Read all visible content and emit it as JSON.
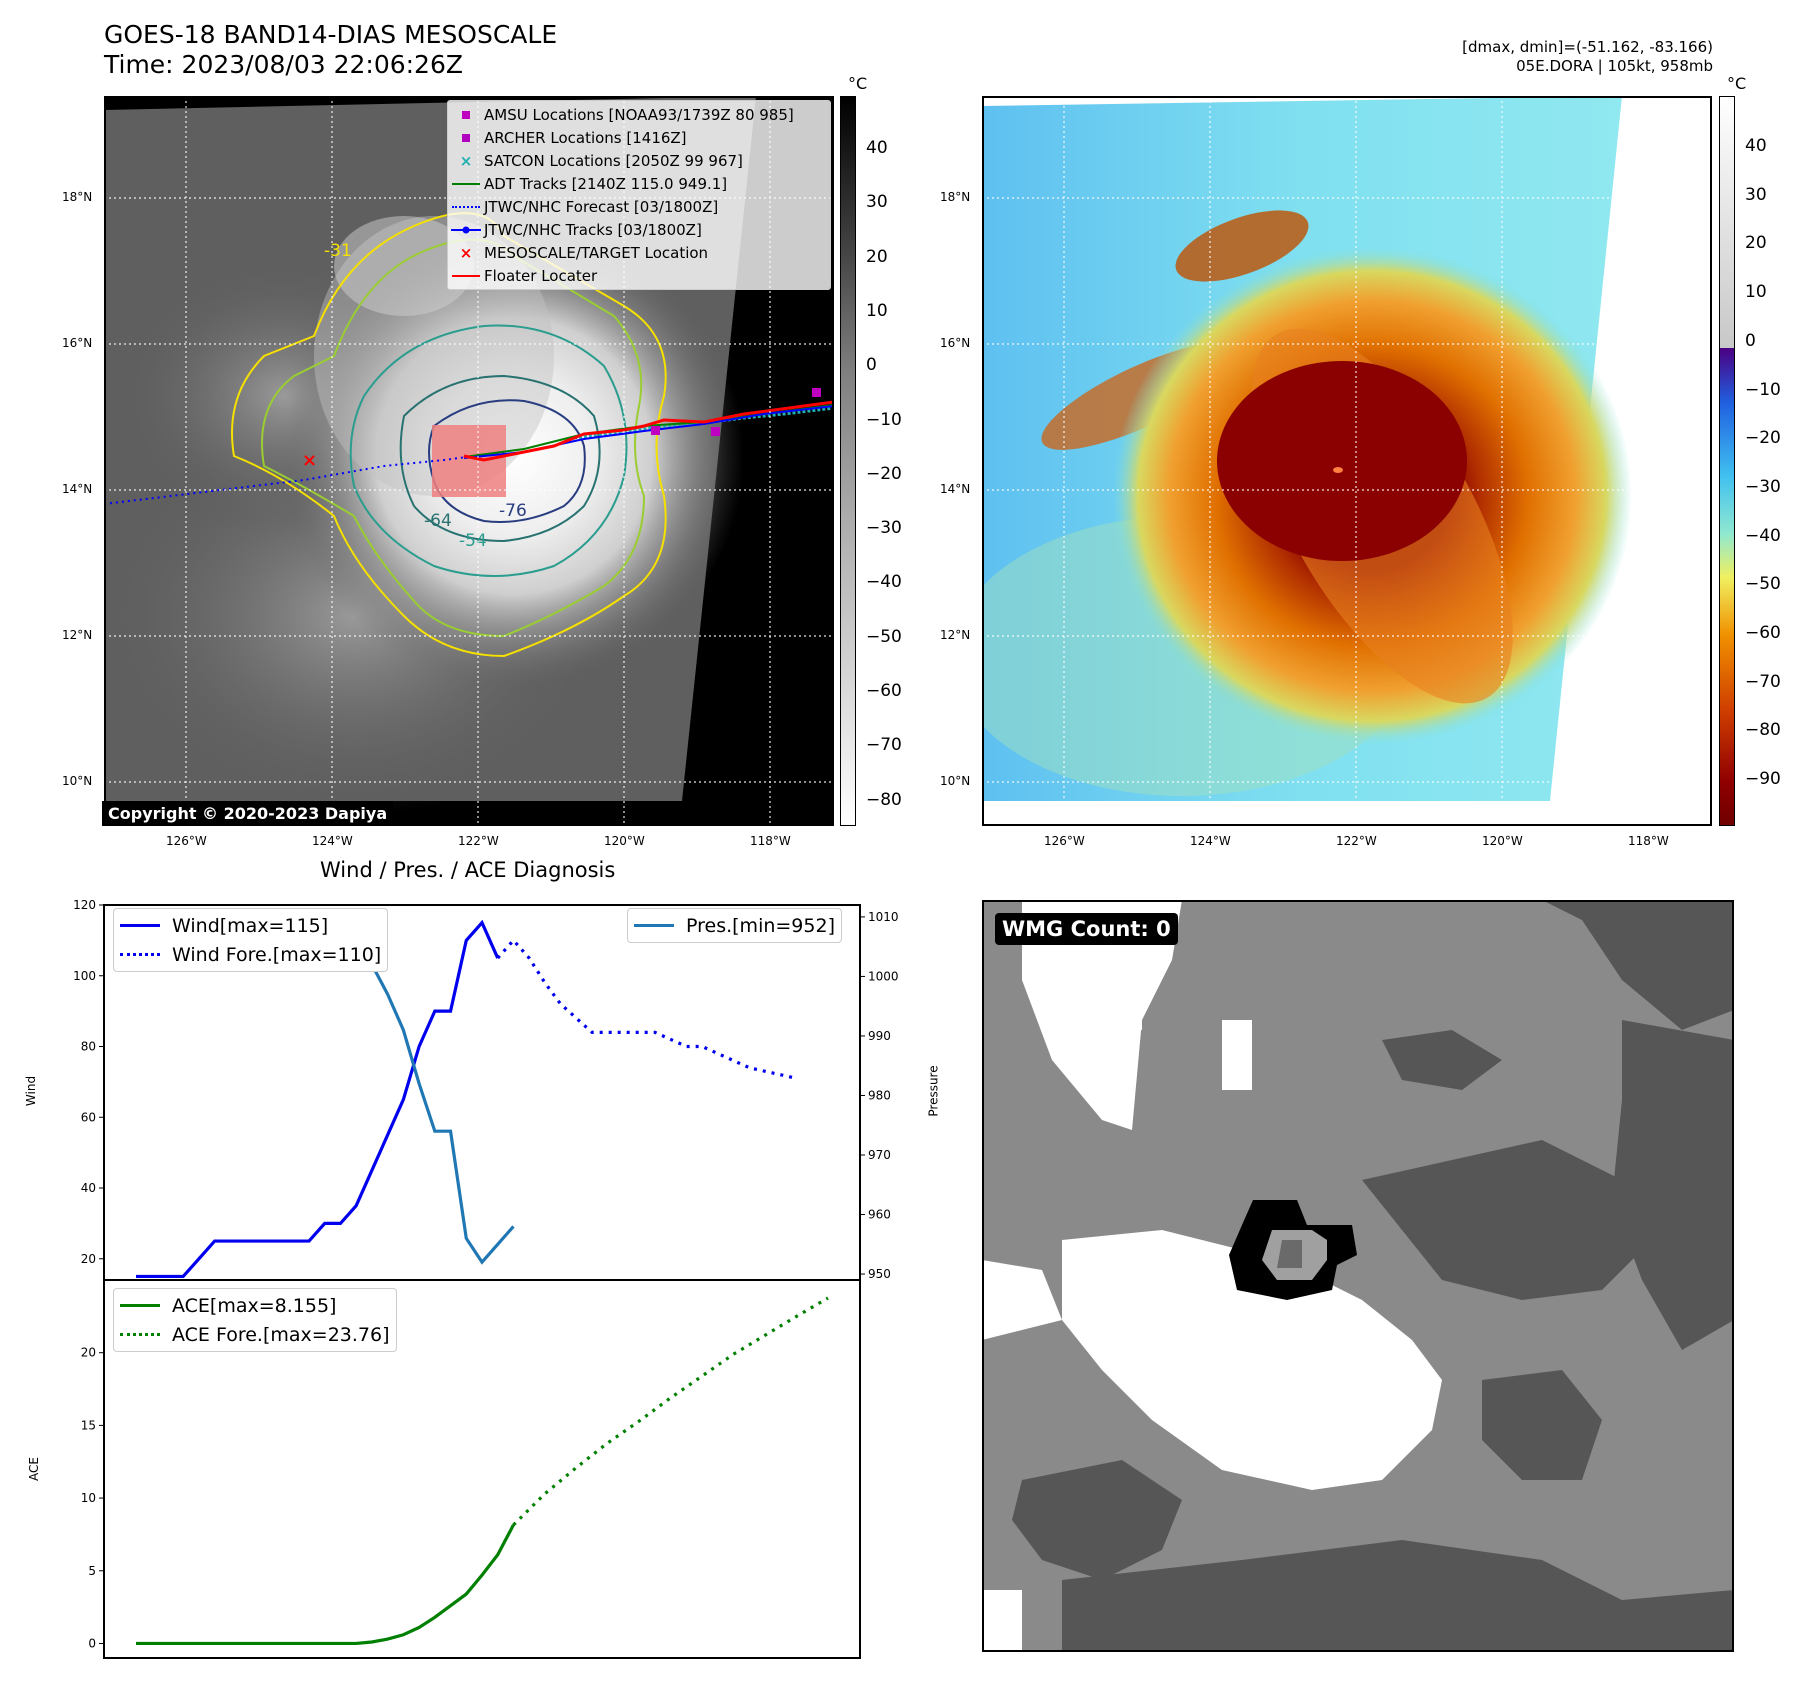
{
  "header": {
    "title_line1": "GOES-18 BAND14-DIAS MESOSCALE",
    "title_line2": "Time: 2023/08/03 22:06:26Z",
    "right_line1": "[dmax, dmin]=(-51.162, -83.166)",
    "right_line2": "05E.DORA | 105kt, 958mb"
  },
  "colors": {
    "amsu": "#c000c0",
    "archer": "#b000c0",
    "satcon": "#20b0b0",
    "adt": "#008000",
    "jtwc_forecast": "#0000ff",
    "jtwc_track": "#0000ff",
    "target": "#ff0000",
    "floater": "#ff0000",
    "wind": "#0000ee",
    "pres": "#1f77b4",
    "ace": "#008000"
  },
  "map_axes": {
    "lon_ticks": [
      "126°W",
      "124°W",
      "122°W",
      "120°W",
      "118°W"
    ],
    "lat_ticks": [
      "18°N",
      "16°N",
      "14°N",
      "12°N",
      "10°N"
    ]
  },
  "ir_panel": {
    "legend": [
      "AMSU Locations [NOAA93/1739Z 80 985]",
      "ARCHER Locations [1416Z]",
      "SATCON Locations [2050Z 99 967]",
      "ADT Tracks [2140Z 115.0 949.1]",
      "JTWC/NHC Forecast [03/1800Z]",
      "JTWC/NHC Tracks [03/1800Z]",
      "MESOSCALE/TARGET Location",
      "Floater Locater"
    ],
    "contour_labels": [
      "-76",
      "-64",
      "-54",
      "-31"
    ],
    "copyright": "Copyright © 2020-2023 Dapiya",
    "colorbar_unit": "°C",
    "colorbar_ticks": [
      "40",
      "30",
      "20",
      "10",
      "0",
      "−10",
      "−20",
      "−30",
      "−40",
      "−50",
      "−60",
      "−70",
      "−80"
    ]
  },
  "color_panel": {
    "colorbar_unit": "°C",
    "colorbar_ticks": [
      "40",
      "30",
      "20",
      "10",
      "0",
      "−10",
      "−20",
      "−30",
      "−40",
      "−50",
      "−60",
      "−70",
      "−80",
      "−90"
    ]
  },
  "wmg_panel": {
    "label": "WMG Count: 0"
  },
  "chart_data": [
    {
      "type": "line",
      "title": "Wind / Pres. / ACE Diagnosis",
      "ylabel": "Wind",
      "ylabel2": "Pressure",
      "ylim": [
        14,
        120
      ],
      "ylim2": [
        949,
        1012
      ],
      "yticks": [
        20,
        40,
        60,
        80,
        100,
        120
      ],
      "yticks2": [
        950,
        960,
        970,
        980,
        990,
        1000,
        1010
      ],
      "series": [
        {
          "name": "Wind[max=115]",
          "x": [
            0,
            1,
            2,
            3,
            4,
            5,
            6,
            7,
            8,
            9,
            10,
            11,
            12,
            13,
            14,
            15,
            16,
            17,
            18,
            19,
            20,
            21,
            22,
            23
          ],
          "values": [
            15,
            15,
            15,
            15,
            20,
            25,
            25,
            25,
            25,
            25,
            25,
            25,
            30,
            30,
            35,
            45,
            55,
            65,
            80,
            90,
            90,
            110,
            115,
            105
          ]
        },
        {
          "name": "Wind Fore.[max=110]",
          "x": [
            23,
            24,
            25,
            26,
            27,
            28,
            29,
            30,
            31,
            32,
            33,
            34,
            35,
            36,
            37,
            38,
            39,
            40,
            41,
            42
          ],
          "values": [
            105,
            110,
            105,
            98,
            92,
            88,
            84,
            84,
            84,
            84,
            84,
            82,
            80,
            80,
            78,
            76,
            74,
            73,
            72,
            71
          ]
        },
        {
          "name": "Pres.[min=952]",
          "axis": "right",
          "x": [
            0,
            1,
            2,
            3,
            4,
            5,
            6,
            7,
            8,
            9,
            10,
            11,
            12,
            13,
            14,
            15,
            16,
            17,
            18,
            19,
            20,
            21,
            22,
            23,
            24
          ],
          "values": [
            1010,
            1010,
            1010,
            1010,
            1010,
            1009,
            1008,
            1008,
            1008,
            1008,
            1008,
            1008,
            1008,
            1008,
            1006,
            1002,
            997,
            991,
            982,
            974,
            974,
            956,
            952,
            955,
            958
          ]
        }
      ]
    },
    {
      "type": "line",
      "ylabel": "ACE",
      "ylim": [
        -1,
        25
      ],
      "yticks": [
        0,
        5,
        10,
        15,
        20
      ],
      "series": [
        {
          "name": "ACE[max=8.155]",
          "x": [
            0,
            1,
            2,
            3,
            4,
            5,
            6,
            7,
            8,
            9,
            10,
            11,
            12,
            13,
            14,
            15,
            16,
            17,
            18,
            19,
            20,
            21,
            22,
            23,
            24
          ],
          "values": [
            0,
            0,
            0,
            0,
            0,
            0,
            0,
            0,
            0,
            0,
            0,
            0,
            0,
            0,
            0,
            0.1,
            0.3,
            0.6,
            1.1,
            1.8,
            2.6,
            3.4,
            4.7,
            6.1,
            8.155
          ]
        },
        {
          "name": "ACE Fore.[max=23.76]",
          "x": [
            24,
            26,
            28,
            30,
            32,
            34,
            36,
            38,
            40,
            42,
            44
          ],
          "values": [
            8.155,
            10.3,
            12.1,
            13.8,
            15.3,
            16.9,
            18.4,
            19.9,
            21.2,
            22.5,
            23.76
          ]
        }
      ]
    }
  ]
}
